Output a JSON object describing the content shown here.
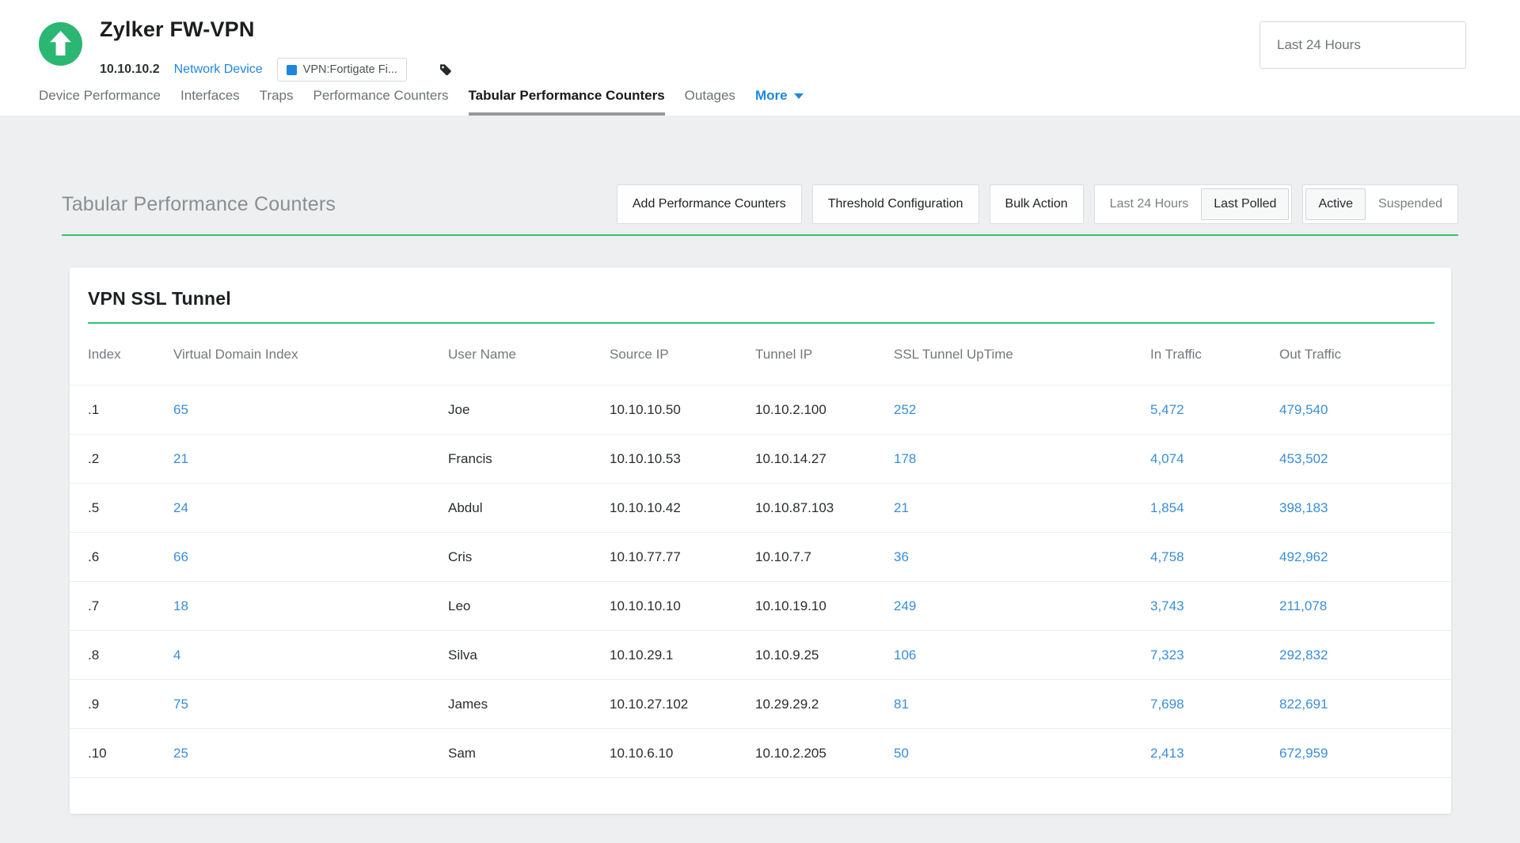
{
  "colors": {
    "status_green": "#2bb673",
    "accent_green": "#2fc46f",
    "nav_blue": "#1f87dd",
    "link_blue": "#3a8ed8",
    "body_bg": "#edeff0"
  },
  "header": {
    "status_icon": "up-arrow-circle-icon",
    "device_name": "Zylker FW-VPN",
    "ip_address": "10.10.10.2",
    "category_link": "Network Device",
    "tag_label": "VPN:Fortigate Fi...",
    "time_range": "Last 24 Hours"
  },
  "tabs": [
    {
      "label": "Device Performance",
      "active": false
    },
    {
      "label": "Interfaces",
      "active": false
    },
    {
      "label": "Traps",
      "active": false
    },
    {
      "label": "Performance Counters",
      "active": false
    },
    {
      "label": "Tabular Performance Counters",
      "active": true
    },
    {
      "label": "Outages",
      "active": false
    },
    {
      "label": "More",
      "active": false,
      "dropdown": true
    }
  ],
  "toolbar": {
    "section_title": "Tabular Performance Counters",
    "buttons": [
      "Add Performance Counters",
      "Threshold Configuration",
      "Bulk Action"
    ],
    "toggles": [
      {
        "name": "poll-mode",
        "options": [
          "Last 24 Hours",
          "Last Polled"
        ],
        "selected": "Last Polled"
      },
      {
        "name": "counter-state",
        "options": [
          "Active",
          "Suspended"
        ],
        "selected": "Active"
      }
    ]
  },
  "table": {
    "title": "VPN SSL Tunnel",
    "columns": [
      {
        "label": "Index",
        "link": false
      },
      {
        "label": "Virtual Domain Index",
        "link": true
      },
      {
        "label": "User Name",
        "link": false
      },
      {
        "label": "Source IP",
        "link": false
      },
      {
        "label": "Tunnel IP",
        "link": false
      },
      {
        "label": "SSL Tunnel UpTime",
        "link": true
      },
      {
        "label": "In Traffic",
        "link": true
      },
      {
        "label": "Out Traffic",
        "link": true
      }
    ],
    "rows": [
      [
        ".1",
        "65",
        "Joe",
        "10.10.10.50",
        "10.10.2.100",
        "252",
        "5,472",
        "479,540"
      ],
      [
        ".2",
        "21",
        "Francis",
        "10.10.10.53",
        "10.10.14.27",
        "178",
        "4,074",
        "453,502"
      ],
      [
        ".5",
        "24",
        "Abdul",
        "10.10.10.42",
        "10.10.87.103",
        "21",
        "1,854",
        "398,183"
      ],
      [
        ".6",
        "66",
        "Cris",
        "10.10.77.77",
        "10.10.7.7",
        "36",
        "4,758",
        "492,962"
      ],
      [
        ".7",
        "18",
        "Leo",
        "10.10.10.10",
        "10.10.19.10",
        "249",
        "3,743",
        "211,078"
      ],
      [
        ".8",
        "4",
        "Silva",
        "10.10.29.1",
        "10.10.9.25",
        "106",
        "7,323",
        "292,832"
      ],
      [
        ".9",
        "75",
        "James",
        "10.10.27.102",
        "10.29.29.2",
        "81",
        "7,698",
        "822,691"
      ],
      [
        ".10",
        "25",
        "Sam",
        "10.10.6.10",
        "10.10.2.205",
        "50",
        "2,413",
        "672,959"
      ]
    ]
  }
}
